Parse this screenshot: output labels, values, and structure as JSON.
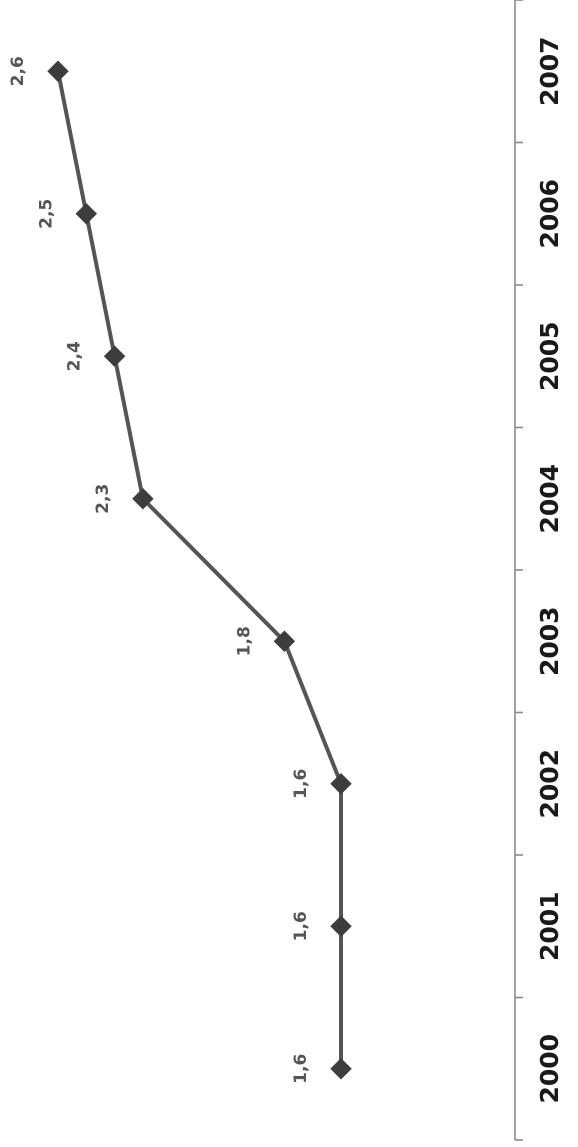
{
  "chart_data": {
    "type": "line",
    "categories": [
      "2000",
      "2001",
      "2002",
      "2003",
      "2004",
      "2005",
      "2006",
      "2007"
    ],
    "series": [
      {
        "values": [
          1.6,
          1.6,
          1.6,
          1.8,
          2.3,
          2.4,
          2.5,
          2.6
        ],
        "labels": [
          "1,6",
          "1,6",
          "1,6",
          "1,8",
          "2,3",
          "2,4",
          "2,5",
          "2,6"
        ]
      }
    ],
    "title": "",
    "xlabel": "",
    "ylabel": "",
    "orientation": "rotated 90° counter-clockwise",
    "grid": false,
    "legend": "none",
    "marker": "diamond",
    "colors": {
      "line": "#555555",
      "marker": "#3d3d3d",
      "axis": "#8a8a8a",
      "label": "#1a1a1a"
    }
  }
}
